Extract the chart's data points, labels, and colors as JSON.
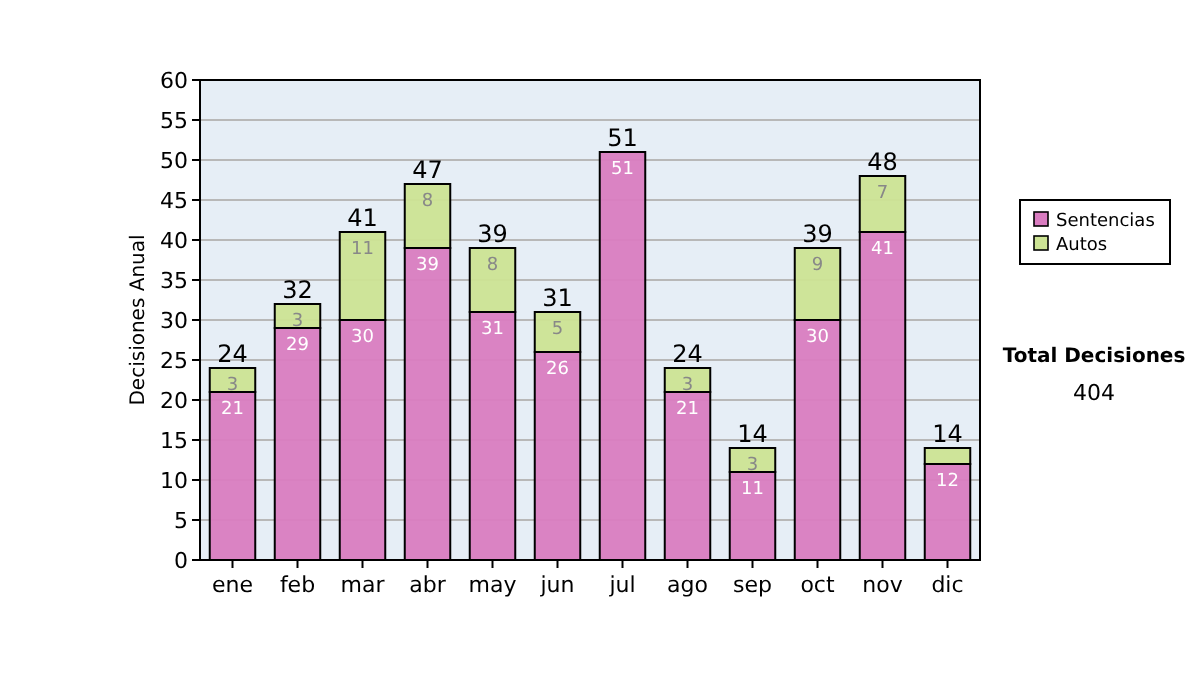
{
  "chart_data": {
    "type": "bar",
    "stacked": true,
    "ylabel": "Decisiones Anual",
    "categories": [
      "ene",
      "feb",
      "mar",
      "abr",
      "may",
      "jun",
      "jul",
      "ago",
      "sep",
      "oct",
      "nov",
      "dic"
    ],
    "series": [
      {
        "name": "Sentencias",
        "color": "#d97cc0",
        "values": [
          21,
          29,
          30,
          39,
          31,
          26,
          51,
          21,
          11,
          30,
          41,
          12
        ],
        "value_labels": [
          "21",
          "29",
          "30",
          "39",
          "31",
          "26",
          "51",
          "21",
          "11",
          "30",
          "41",
          "12"
        ]
      },
      {
        "name": "Autos",
        "color": "#cce394",
        "values": [
          3,
          3,
          11,
          8,
          8,
          5,
          0,
          3,
          3,
          9,
          7,
          2
        ],
        "value_labels": [
          "3",
          "3",
          "11",
          "8",
          "8",
          "5",
          null,
          "3",
          "3",
          "9",
          "7",
          null
        ]
      }
    ],
    "totals": [
      "24",
      "32",
      "41",
      "47",
      "39",
      "31",
      "51",
      "24",
      "14",
      "39",
      "48",
      "14"
    ],
    "ylim": [
      0,
      60
    ],
    "yticks": [
      0,
      5,
      10,
      15,
      20,
      25,
      30,
      35,
      40,
      45,
      50,
      55,
      60
    ],
    "grid": "y",
    "legend": "right",
    "annotations": [
      "Total Decisiones",
      "404"
    ]
  }
}
